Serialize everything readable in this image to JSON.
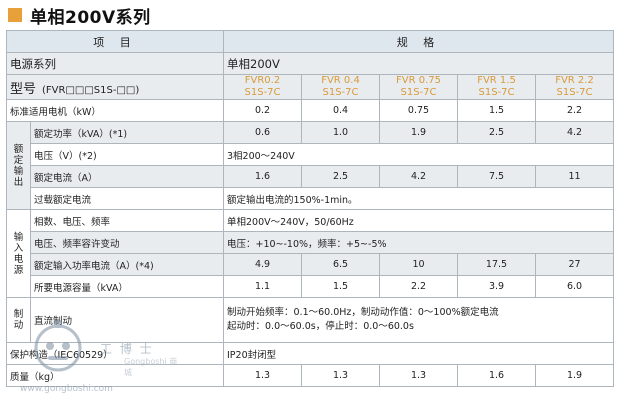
{
  "page": {
    "title": "单相200V系列"
  },
  "table": {
    "header": {
      "item": "项 目",
      "spec": "规 格"
    },
    "series": {
      "label": "电源系列",
      "value": "单相200V"
    },
    "model": {
      "label": "型号",
      "pattern": "(FVR□□□S1S-□□)",
      "values": [
        "FVR0.2\nS1S-7C",
        "FVR 0.4\nS1S-7C",
        "FVR 0.75\nS1S-7C",
        "FVR 1.5\nS1S-7C",
        "FVR 2.2\nS1S-7C"
      ]
    },
    "motor": {
      "label": "标准适用电机（kW）",
      "values": [
        "0.2",
        "0.4",
        "0.75",
        "1.5",
        "2.2"
      ]
    },
    "rated_output": {
      "group": "额定输出",
      "capacity": {
        "label": "额定功率（kVA）(*1)",
        "values": [
          "0.6",
          "1.0",
          "1.9",
          "2.5",
          "4.2"
        ]
      },
      "voltage": {
        "label": "电压（V）(*2)",
        "value": "3相200～240V"
      },
      "current": {
        "label": "额定电流（A）",
        "values": [
          "1.6",
          "2.5",
          "4.2",
          "7.5",
          "11"
        ]
      },
      "overload": {
        "label": "过载额定电流",
        "value": "额定输出电流的150%-1min。"
      }
    },
    "input_power": {
      "group": "输入电源",
      "phase": {
        "label": "相数、电压、频率",
        "value": "单相200V～240V，50/60Hz"
      },
      "tolerance": {
        "label": "电压、频率容许变动",
        "value": "电压：+10~-10%，频率：+5~-5%"
      },
      "rated_input": {
        "label": "额定输入功率电流（A）(*4)",
        "values": [
          "4.9",
          "6.5",
          "10",
          "17.5",
          "27"
        ]
      },
      "capacity": {
        "label": "所要电源容量（kVA）",
        "values": [
          "1.1",
          "1.5",
          "2.2",
          "3.9",
          "6.0"
        ]
      }
    },
    "braking": {
      "group": "制动",
      "dc": {
        "label": "直流制动",
        "value_line1": "制动开始频率：0.1～60.0Hz，制动动作值：0～100%额定电流",
        "value_line2": "起动时：0.0～60.0s，停止时：0.0～60.0s"
      }
    },
    "protection": {
      "label": "保护构造（IEC60529）",
      "value": "IP20封闭型"
    },
    "mass": {
      "label": "质量（kg）",
      "values": [
        "1.3",
        "1.3",
        "1.3",
        "1.6",
        "1.9"
      ]
    }
  },
  "watermark": {
    "text": "工 博 士",
    "sub": "Gongboshi 商城",
    "url": "www.gongboshi.com"
  }
}
